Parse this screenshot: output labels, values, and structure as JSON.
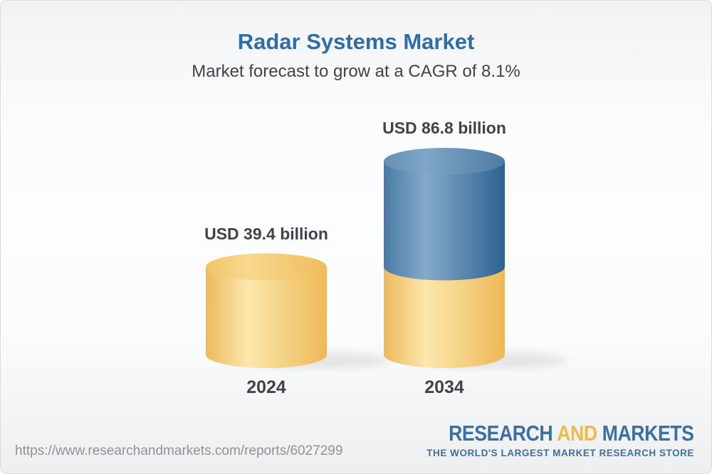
{
  "header": {
    "title": "Radar Systems Market",
    "subtitle": "Market forecast to grow at a CAGR of 8.1%"
  },
  "chart_data": {
    "type": "bar",
    "variant": "3d-cylinder",
    "title": "Radar Systems Market",
    "subtitle": "Market forecast to grow at a CAGR of 8.1%",
    "cagr": "8.1%",
    "unit": "USD billion",
    "categories": [
      "2024",
      "2034"
    ],
    "values": [
      39.4,
      86.8
    ],
    "value_labels": [
      "USD 39.4 billion",
      "USD 86.8 billion"
    ],
    "stacking_note": "2034 cylinder shows the 2024 base value in yellow with forecast growth in blue",
    "grid": false,
    "legend": false,
    "axis_labels": [],
    "colors": {
      "yellow_body_stops": [
        "#ecba5e",
        "#fce7ad",
        "#eeb956"
      ],
      "yellow_top_stops": [
        "#f2c569",
        "#f8d88e",
        "#efbd5c"
      ],
      "blue_body_stops": [
        "#4a7ba6",
        "#84aac9",
        "#2d6293"
      ],
      "blue_top_stops": [
        "#6690b3",
        "#7ea6c5",
        "#4f7aa4"
      ],
      "shadow": "#b9bdc1"
    }
  },
  "footer": {
    "url": "https://www.researchandmarkets.com/reports/6027299",
    "logo": {
      "part1": "RESEARCH",
      "part2": "AND",
      "part3": "MARKETS",
      "tagline": "THE WORLD'S LARGEST MARKET RESEARCH STORE"
    }
  },
  "colors": {
    "title_blue": "#2e6da8",
    "text_dark": "#3f4448",
    "url_gray": "#8f9398",
    "logo_blue": "#3a70a3",
    "logo_yellow": "#f0ba43"
  }
}
